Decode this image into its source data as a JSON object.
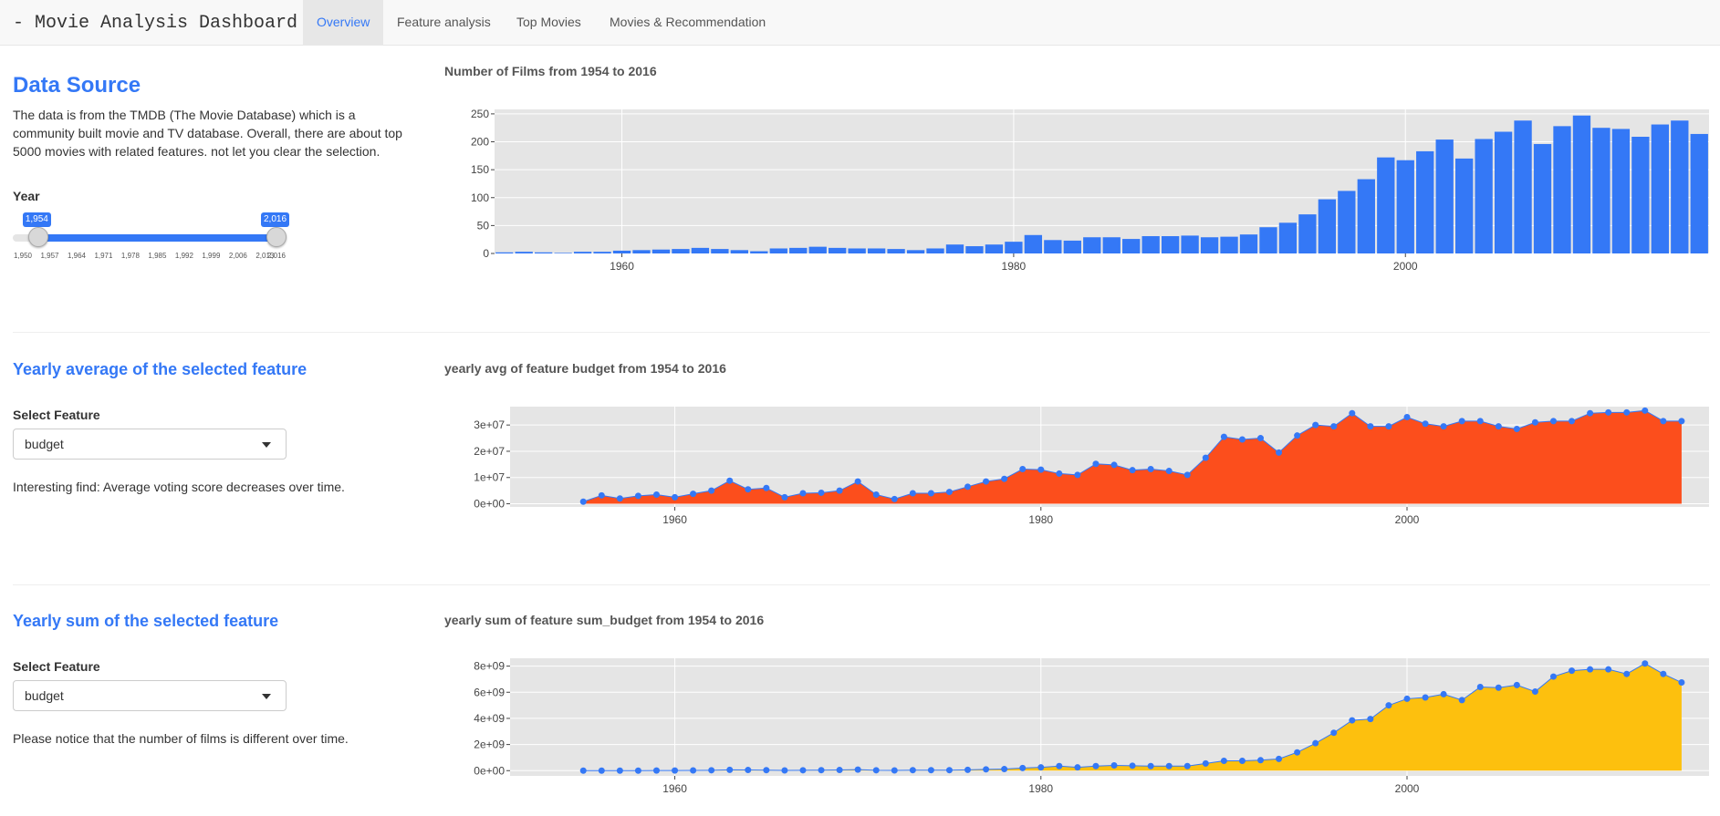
{
  "nav": {
    "brand": "- Movie Analysis Dashboard -",
    "tabs": [
      "Overview",
      "Feature analysis",
      "Top Movies",
      "Movies & Recommendation"
    ],
    "active": 0
  },
  "source": {
    "title": "Data Source",
    "text": "The data is from the TMDB (The Movie Database) which is a community built movie and TV database. Overall, there are about top 5000 movies with related features. not let you clear the selection."
  },
  "slider": {
    "label": "Year",
    "min": 1950,
    "max": 2016,
    "from": 1954,
    "to": 2016,
    "from_label": "1,954",
    "to_label": "2,016",
    "ticks": [
      "1,950",
      "1,957",
      "1,964",
      "1,971",
      "1,978",
      "1,985",
      "1,992",
      "1,999",
      "2,006",
      "2,013",
      "2,016"
    ]
  },
  "avg_section": {
    "title": "Yearly average of the selected feature",
    "select_label": "Select Feature",
    "select_value": "budget",
    "note": "Interesting find: Average voting score decreases over time."
  },
  "sum_section": {
    "title": "Yearly sum of the selected feature",
    "select_label": "Select Feature",
    "select_value": "budget",
    "note": "Please notice that the number of films is different over time."
  },
  "colors": {
    "accent": "#3478f6",
    "bar": "#3478f6",
    "avg_fill": "#fc4e1c",
    "sum_fill": "#fdc00e",
    "plot_bg": "#e5e5e5",
    "grid": "#ffffff"
  },
  "chart_data": [
    {
      "type": "bar",
      "title": "Number of Films from 1954 to 2016",
      "x": [
        1954,
        1955,
        1956,
        1957,
        1958,
        1959,
        1960,
        1961,
        1962,
        1963,
        1964,
        1965,
        1966,
        1967,
        1968,
        1969,
        1970,
        1971,
        1972,
        1973,
        1974,
        1975,
        1976,
        1977,
        1978,
        1979,
        1980,
        1981,
        1982,
        1983,
        1984,
        1985,
        1986,
        1987,
        1988,
        1989,
        1990,
        1991,
        1992,
        1993,
        1994,
        1995,
        1996,
        1997,
        1998,
        1999,
        2000,
        2001,
        2002,
        2003,
        2004,
        2005,
        2006,
        2007,
        2008,
        2009,
        2010,
        2011,
        2012,
        2013,
        2014,
        2015,
        2016
      ],
      "values": [
        2,
        3,
        2,
        1,
        3,
        3,
        5,
        6,
        7,
        8,
        10,
        8,
        6,
        4,
        9,
        10,
        12,
        10,
        9,
        9,
        8,
        6,
        9,
        16,
        13,
        16,
        21,
        33,
        24,
        23,
        29,
        29,
        26,
        31,
        31,
        32,
        29,
        30,
        34,
        47,
        55,
        70,
        97,
        112,
        133,
        172,
        167,
        183,
        204,
        170,
        205,
        218,
        238,
        196,
        228,
        247,
        225,
        223,
        209,
        231,
        238,
        214,
        212
      ],
      "xlim": [
        1953.5,
        2015.5
      ],
      "ylim": [
        0,
        258
      ],
      "xticks": [
        1960,
        1980,
        2000
      ],
      "yticks": [
        0,
        50,
        100,
        150,
        200,
        250
      ],
      "ytick_labels": [
        "0",
        "50",
        "100",
        "150",
        "200",
        "250"
      ],
      "xtick_labels": [
        "1960",
        "1980",
        "2000"
      ],
      "grid": true
    },
    {
      "type": "area",
      "title": "yearly avg of feature budget from 1954 to 2016",
      "x": [
        1955,
        1956,
        1957,
        1958,
        1959,
        1960,
        1961,
        1962,
        1963,
        1964,
        1965,
        1966,
        1967,
        1968,
        1969,
        1970,
        1971,
        1972,
        1973,
        1974,
        1975,
        1976,
        1977,
        1978,
        1979,
        1980,
        1981,
        1982,
        1983,
        1984,
        1985,
        1986,
        1987,
        1988,
        1989,
        1990,
        1991,
        1992,
        1993,
        1994,
        1995,
        1996,
        1997,
        1998,
        1999,
        2000,
        2001,
        2002,
        2003,
        2004,
        2005,
        2006,
        2007,
        2008,
        2009,
        2010,
        2011,
        2012,
        2013,
        2014,
        2015
      ],
      "values": [
        800000.0,
        3200000.0,
        2000000.0,
        3000000.0,
        3500000.0,
        2500000.0,
        3800000.0,
        5000000.0,
        8800000.0,
        5500000.0,
        6000000.0,
        2500000.0,
        4000000.0,
        4200000.0,
        5000000.0,
        8500000.0,
        3500000.0,
        1800000.0,
        4000000.0,
        4000000.0,
        4500000.0,
        6500000.0,
        8500000.0,
        9500000.0,
        13200000.0,
        13000000.0,
        11500000.0,
        11000000.0,
        15200000.0,
        14800000.0,
        12800000.0,
        13200000.0,
        12500000.0,
        11000000.0,
        17500000.0,
        25500000.0,
        24500000.0,
        25000000.0,
        19500000.0,
        26000000.0,
        30000000.0,
        29500000.0,
        34500000.0,
        29500000.0,
        29500000.0,
        33000000.0,
        30500000.0,
        29500000.0,
        31500000.0,
        31500000.0,
        29500000.0,
        28500000.0,
        31000000.0,
        31500000.0,
        31500000.0,
        34500000.0,
        34800000.0,
        34800000.0,
        35500000.0,
        31500000.0,
        31500000.0
      ],
      "xlim": [
        1951,
        2016.5
      ],
      "ylim": [
        -1200000.0,
        37000000.0
      ],
      "xticks": [
        1960,
        1980,
        2000
      ],
      "xtick_labels": [
        "1960",
        "1980",
        "2000"
      ],
      "yticks": [
        0,
        10000000.0,
        20000000.0,
        30000000.0
      ],
      "ytick_labels": [
        "0e+00",
        "1e+07",
        "2e+07",
        "3e+07"
      ],
      "grid": true
    },
    {
      "type": "area",
      "title": "yearly sum of feature sum_budget from 1954 to 2016",
      "x": [
        1955,
        1956,
        1957,
        1958,
        1959,
        1960,
        1961,
        1962,
        1963,
        1964,
        1965,
        1966,
        1967,
        1968,
        1969,
        1970,
        1971,
        1972,
        1973,
        1974,
        1975,
        1976,
        1977,
        1978,
        1979,
        1980,
        1981,
        1982,
        1983,
        1984,
        1985,
        1986,
        1987,
        1988,
        1989,
        1990,
        1991,
        1992,
        1993,
        1994,
        1995,
        1996,
        1997,
        1998,
        1999,
        2000,
        2001,
        2002,
        2003,
        2004,
        2005,
        2006,
        2007,
        2008,
        2009,
        2010,
        2011,
        2012,
        2013,
        2014,
        2015
      ],
      "values": [
        0.0,
        0.0,
        0.0,
        0.0,
        10000000.0,
        10000000.0,
        20000000.0,
        30000000.0,
        60000000.0,
        50000000.0,
        40000000.0,
        20000000.0,
        30000000.0,
        40000000.0,
        50000000.0,
        80000000.0,
        30000000.0,
        20000000.0,
        40000000.0,
        40000000.0,
        40000000.0,
        60000000.0,
        100000000.0,
        120000000.0,
        200000000.0,
        250000000.0,
        350000000.0,
        250000000.0,
        350000000.0,
        400000000.0,
        380000000.0,
        350000000.0,
        350000000.0,
        350000000.0,
        550000000.0,
        750000000.0,
        750000000.0,
        800000000.0,
        900000000.0,
        1400000000.0,
        2100000000.0,
        2900000000.0,
        3850000000.0,
        3950000000.0,
        5000000000.0,
        5500000000.0,
        5600000000.0,
        5850000000.0,
        5400000000.0,
        6400000000.0,
        6350000000.0,
        6550000000.0,
        6050000000.0,
        7200000000.0,
        7650000000.0,
        7750000000.0,
        7750000000.0,
        7400000000.0,
        8200000000.0,
        7400000000.0,
        6750000000.0
      ],
      "xlim": [
        1951,
        2016.5
      ],
      "ylim": [
        -400000000.0,
        8600000000.0
      ],
      "xticks": [
        1960,
        1980,
        2000
      ],
      "xtick_labels": [
        "1960",
        "1980",
        "2000"
      ],
      "yticks": [
        0,
        2000000000.0,
        4000000000.0,
        6000000000.0,
        8000000000.0
      ],
      "ytick_labels": [
        "0e+00",
        "2e+09",
        "4e+09",
        "6e+09",
        "8e+09"
      ],
      "grid": true
    }
  ]
}
